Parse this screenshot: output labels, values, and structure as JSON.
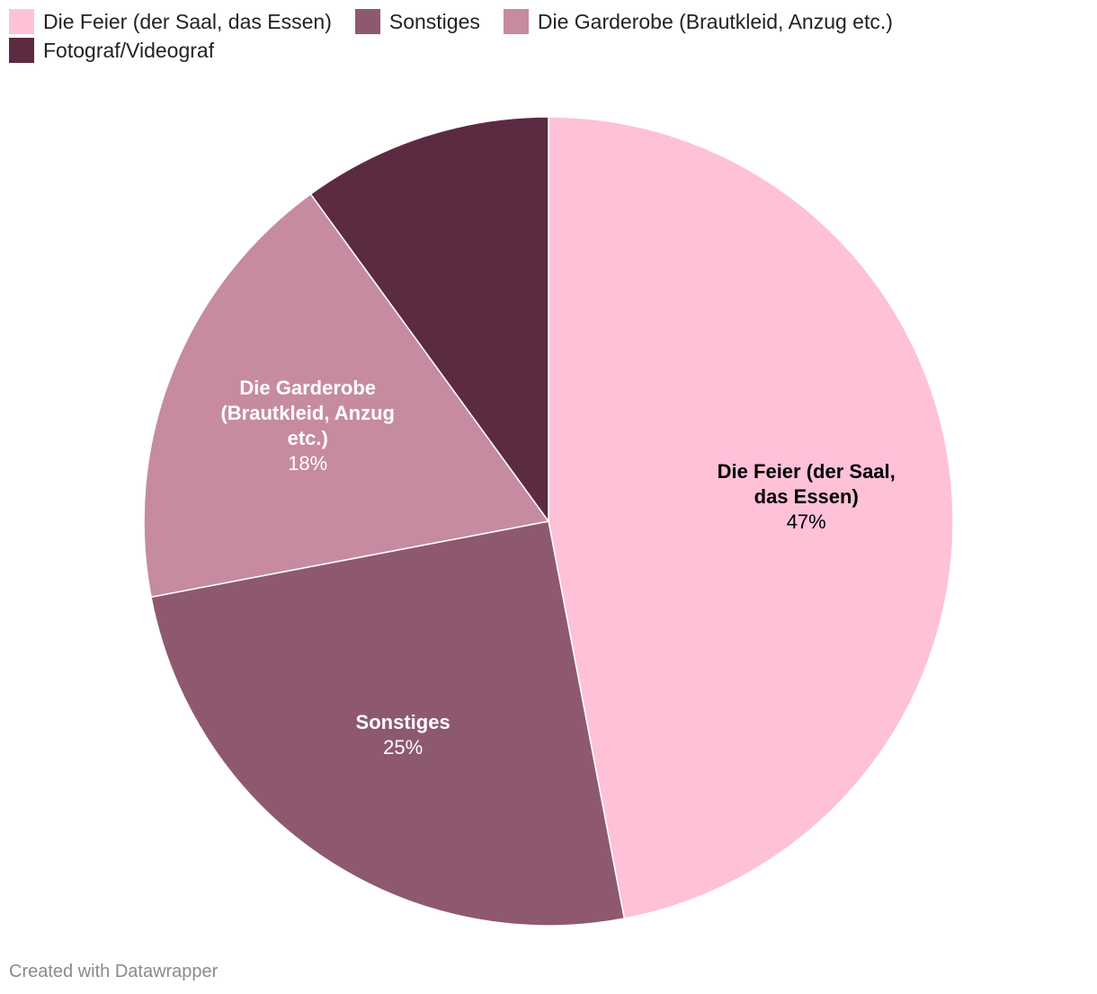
{
  "chart_data": {
    "type": "pie",
    "title": "",
    "slices": [
      {
        "label": "Die Feier (der Saal, das Essen)",
        "label_lines": [
          "Die Feier (der Saal,",
          "das Essen)"
        ],
        "value": 47,
        "value_label": "47%",
        "color": "#fec1d8",
        "text_color": "#000000"
      },
      {
        "label": "Sonstiges",
        "label_lines": [
          "Sonstiges"
        ],
        "value": 25,
        "value_label": "25%",
        "color": "#8e596e",
        "text_color": "#ffffff"
      },
      {
        "label": "Die Garderobe (Brautkleid, Anzug etc.)",
        "label_lines": [
          "Die Garderobe",
          "(Brautkleid, Anzug",
          "etc.)"
        ],
        "value": 18,
        "value_label": "18%",
        "color": "#c68ba0",
        "text_color": "#ffffff"
      },
      {
        "label": "Fotograf/Videograf",
        "label_lines": [],
        "value": 10,
        "value_label": "",
        "color": "#5c2a41",
        "text_color": "#ffffff"
      }
    ],
    "legend_position": "top-left"
  },
  "credit": "Created with Datawrapper"
}
